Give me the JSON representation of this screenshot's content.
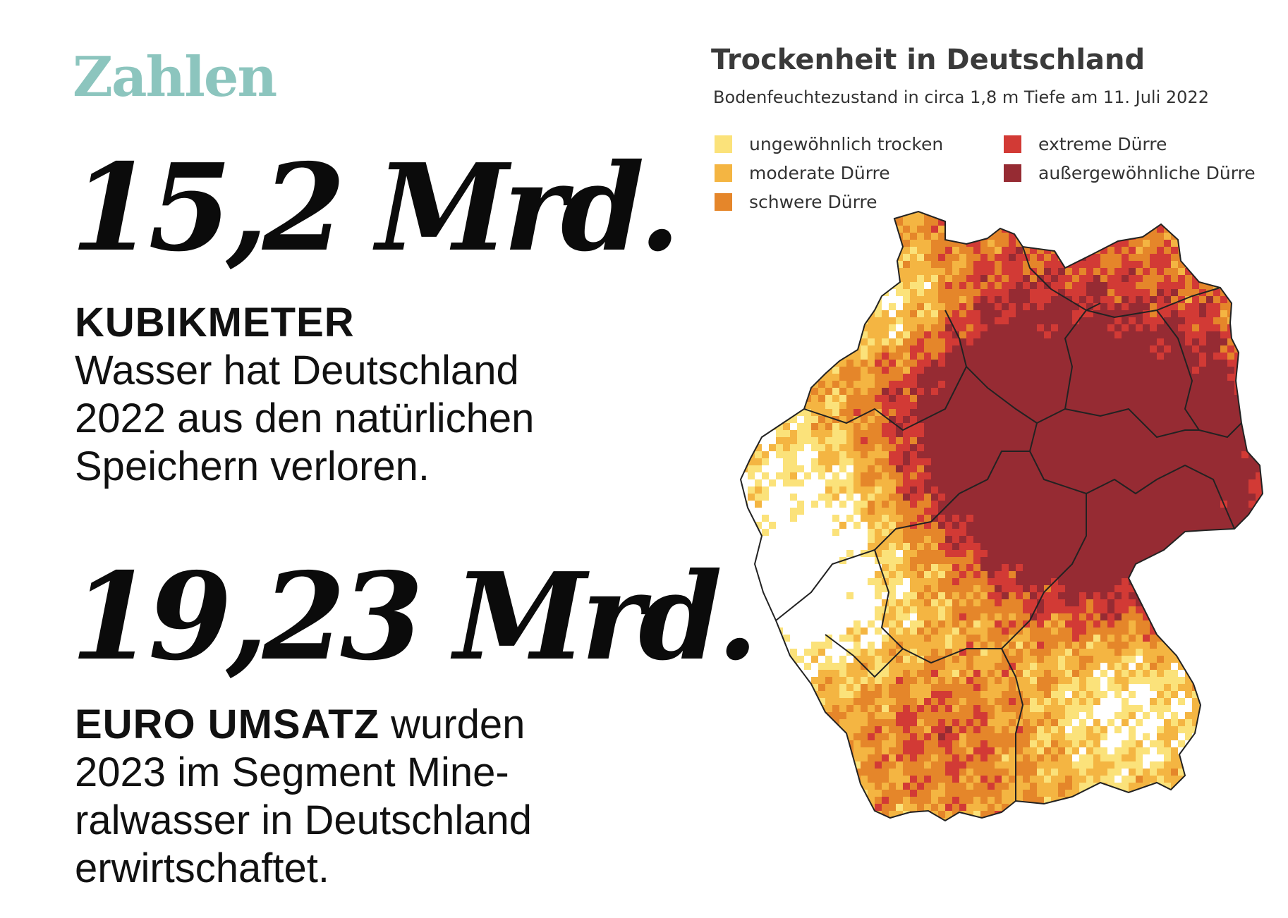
{
  "section": {
    "label": "Zahlen",
    "color": "#8cc5be"
  },
  "facts": [
    {
      "number": "15,2 Mrd.",
      "lead": "KUBIKMETER",
      "lines": [
        "Wasser hat Deutschland",
        "2022 aus den natürlichen",
        "Speichern verloren."
      ]
    },
    {
      "number": "19,23 Mrd.",
      "lead": "EURO UMSATZ",
      "first_line_rest": " wurden",
      "lines": [
        "2023 im Segment Mine-",
        "ralwasser in Deutschland",
        "erwirtschaftet."
      ]
    }
  ],
  "map": {
    "title": "Trockenheit in Deutschland",
    "subtitle": "Bodenfeuchtezustand in circa 1,8 m Tiefe am 11. Juli 2022",
    "legend": [
      {
        "label": "ungewöhnlich trocken",
        "color": "#fbe27a"
      },
      {
        "label": "moderate Dürre",
        "color": "#f4b542"
      },
      {
        "label": "schwere Dürre",
        "color": "#e5862a"
      },
      {
        "label": "extreme Dürre",
        "color": "#d23a35"
      },
      {
        "label": "außergewöhnliche Dürre",
        "color": "#962b33"
      }
    ],
    "border_color": "#222222"
  }
}
